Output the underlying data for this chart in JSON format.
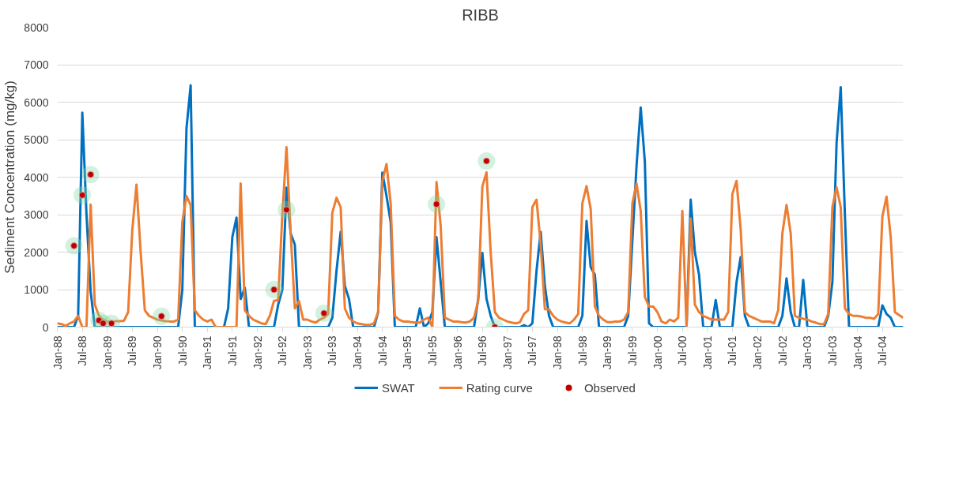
{
  "chart_data": {
    "type": "line",
    "title": "RIBB",
    "ylabel": "Sediment Concentration (mg/kg)",
    "x": [
      "1988-01",
      "1988-02",
      "1988-03",
      "1988-04",
      "1988-05",
      "1988-06",
      "1988-07",
      "1988-08",
      "1988-09",
      "1988-10",
      "1988-11",
      "1988-12",
      "1989-01",
      "1989-02",
      "1989-03",
      "1989-04",
      "1989-05",
      "1989-06",
      "1989-07",
      "1989-08",
      "1989-09",
      "1989-10",
      "1989-11",
      "1989-12",
      "1990-01",
      "1990-02",
      "1990-03",
      "1990-04",
      "1990-05",
      "1990-06",
      "1990-07",
      "1990-08",
      "1990-09",
      "1990-10",
      "1990-11",
      "1990-12",
      "1991-01",
      "1991-02",
      "1991-03",
      "1991-04",
      "1991-05",
      "1991-06",
      "1991-07",
      "1991-08",
      "1991-09",
      "1991-10",
      "1991-11",
      "1991-12",
      "1992-01",
      "1992-02",
      "1992-03",
      "1992-04",
      "1992-05",
      "1992-06",
      "1992-07",
      "1992-08",
      "1992-09",
      "1992-10",
      "1992-11",
      "1992-12",
      "1993-01",
      "1993-02",
      "1993-03",
      "1993-04",
      "1993-05",
      "1993-06",
      "1993-07",
      "1993-08",
      "1993-09",
      "1993-10",
      "1993-11",
      "1993-12",
      "1994-01",
      "1994-02",
      "1994-03",
      "1994-04",
      "1994-05",
      "1994-06",
      "1994-07",
      "1994-08",
      "1994-09",
      "1994-10",
      "1994-11",
      "1994-12",
      "1995-01",
      "1995-02",
      "1995-03",
      "1995-04",
      "1995-05",
      "1995-06",
      "1995-07",
      "1995-08",
      "1995-09",
      "1995-10",
      "1995-11",
      "1995-12",
      "1996-01",
      "1996-02",
      "1996-03",
      "1996-04",
      "1996-05",
      "1996-06",
      "1996-07",
      "1996-08",
      "1996-09",
      "1996-10",
      "1996-11",
      "1996-12",
      "1997-01",
      "1997-02",
      "1997-03",
      "1997-04",
      "1997-05",
      "1997-06",
      "1997-07",
      "1997-08",
      "1997-09",
      "1997-10",
      "1997-11",
      "1997-12",
      "1998-01",
      "1998-02",
      "1998-03",
      "1998-04",
      "1998-05",
      "1998-06",
      "1998-07",
      "1998-08",
      "1998-09",
      "1998-10",
      "1998-11",
      "1998-12",
      "1999-01",
      "1999-02",
      "1999-03",
      "1999-04",
      "1999-05",
      "1999-06",
      "1999-07",
      "1999-08",
      "1999-09",
      "1999-10",
      "1999-11",
      "1999-12",
      "2000-01",
      "2000-02",
      "2000-03",
      "2000-04",
      "2000-05",
      "2000-06",
      "2000-07",
      "2000-08",
      "2000-09",
      "2000-10",
      "2000-11",
      "2000-12",
      "2001-01",
      "2001-02",
      "2001-03",
      "2001-04",
      "2001-05",
      "2001-06",
      "2001-07",
      "2001-08",
      "2001-09",
      "2001-10",
      "2001-11",
      "2001-12",
      "2002-01",
      "2002-02",
      "2002-03",
      "2002-04",
      "2002-05",
      "2002-06",
      "2002-07",
      "2002-08",
      "2002-09",
      "2002-10",
      "2002-11",
      "2002-12",
      "2003-01",
      "2003-02",
      "2003-03",
      "2003-04",
      "2003-05",
      "2003-06",
      "2003-07",
      "2003-08",
      "2003-09",
      "2003-10",
      "2003-11",
      "2003-12",
      "2004-01",
      "2004-02",
      "2004-03",
      "2004-04",
      "2004-05",
      "2004-06",
      "2004-07",
      "2004-08",
      "2004-09",
      "2004-10",
      "2004-11",
      "2004-12"
    ],
    "series": [
      {
        "name": "SWAT",
        "color": "#0070c0",
        "values": [
          0,
          0,
          0,
          0,
          0,
          300,
          5720,
          3000,
          950,
          0,
          0,
          0,
          0,
          0,
          0,
          0,
          0,
          0,
          0,
          0,
          0,
          0,
          0,
          0,
          0,
          0,
          0,
          0,
          0,
          0,
          1000,
          5300,
          6450,
          0,
          0,
          0,
          0,
          0,
          0,
          0,
          0,
          500,
          2400,
          2920,
          750,
          1050,
          0,
          0,
          0,
          0,
          0,
          0,
          0,
          600,
          1000,
          3720,
          2500,
          2200,
          0,
          0,
          0,
          0,
          0,
          0,
          0,
          0,
          250,
          1500,
          2540,
          1100,
          750,
          0,
          0,
          0,
          0,
          0,
          0,
          400,
          4120,
          3500,
          2800,
          0,
          0,
          0,
          0,
          0,
          0,
          500,
          0,
          100,
          400,
          2400,
          1200,
          0,
          0,
          0,
          0,
          0,
          0,
          0,
          0,
          750,
          1980,
          750,
          300,
          0,
          0,
          0,
          0,
          0,
          0,
          0,
          50,
          0,
          100,
          1500,
          2540,
          1100,
          300,
          0,
          0,
          0,
          0,
          0,
          0,
          0,
          300,
          2830,
          1600,
          1400,
          0,
          0,
          0,
          0,
          0,
          0,
          0,
          300,
          2300,
          4300,
          5860,
          4400,
          100,
          0,
          0,
          0,
          0,
          0,
          0,
          0,
          0,
          0,
          3400,
          2000,
          1400,
          0,
          0,
          0,
          720,
          0,
          0,
          0,
          0,
          1200,
          1870,
          300,
          0,
          0,
          0,
          0,
          0,
          0,
          0,
          0,
          300,
          1300,
          400,
          0,
          0,
          1260,
          0,
          0,
          0,
          0,
          0,
          300,
          1200,
          4900,
          6400,
          3000,
          0,
          0,
          0,
          0,
          0,
          0,
          0,
          0,
          580,
          350,
          250,
          0,
          0,
          0
        ]
      },
      {
        "name": "Rating curve",
        "color": "#ed7d31",
        "values": [
          100,
          80,
          30,
          100,
          150,
          300,
          0,
          0,
          3270,
          600,
          300,
          200,
          150,
          150,
          160,
          160,
          170,
          400,
          2600,
          3800,
          2000,
          450,
          300,
          250,
          200,
          180,
          160,
          150,
          150,
          200,
          2800,
          3500,
          3250,
          450,
          300,
          200,
          150,
          200,
          0,
          0,
          0,
          0,
          0,
          0,
          3830,
          450,
          300,
          200,
          150,
          100,
          80,
          300,
          700,
          720,
          3000,
          4800,
          2500,
          500,
          700,
          200,
          200,
          150,
          120,
          200,
          250,
          350,
          3050,
          3450,
          3200,
          500,
          250,
          150,
          100,
          80,
          60,
          60,
          100,
          400,
          3900,
          4350,
          3300,
          300,
          200,
          150,
          150,
          130,
          120,
          120,
          200,
          250,
          0,
          3870,
          2700,
          250,
          200,
          150,
          150,
          130,
          120,
          150,
          250,
          700,
          3750,
          4130,
          2000,
          400,
          250,
          200,
          150,
          120,
          100,
          130,
          350,
          450,
          3200,
          3400,
          2200,
          480,
          470,
          300,
          200,
          150,
          120,
          100,
          200,
          350,
          3300,
          3760,
          3150,
          550,
          300,
          200,
          130,
          130,
          150,
          150,
          200,
          400,
          3300,
          3830,
          3100,
          800,
          550,
          550,
          400,
          150,
          100,
          200,
          150,
          250,
          3100,
          0,
          2900,
          600,
          400,
          300,
          250,
          200,
          200,
          200,
          200,
          400,
          3550,
          3900,
          2600,
          400,
          300,
          250,
          200,
          150,
          150,
          150,
          100,
          450,
          2500,
          3260,
          2500,
          300,
          250,
          220,
          200,
          150,
          120,
          80,
          80,
          350,
          3200,
          3730,
          3200,
          500,
          350,
          300,
          300,
          280,
          250,
          250,
          220,
          350,
          2950,
          3480,
          2400,
          400,
          320,
          250
        ]
      },
      {
        "name": "Observed",
        "type": "scatter",
        "marker": "circle",
        "color": "#c00000",
        "x": [
          "1988-05",
          "1988-07",
          "1988-09",
          "1988-11",
          "1988-12",
          "1989-02",
          "1990-02",
          "1992-05",
          "1992-08",
          "1993-05",
          "1995-08",
          "1996-08",
          "1996-10"
        ],
        "values": [
          2170,
          3520,
          4070,
          180,
          100,
          100,
          290,
          1000,
          3130,
          370,
          3280,
          4430,
          0
        ]
      }
    ],
    "xlim": [
      "1988-01",
      "2004-12"
    ],
    "xticks": [
      {
        "value": "1988-01",
        "label": "Jan-88"
      },
      {
        "value": "1988-07",
        "label": "Jul-88"
      },
      {
        "value": "1989-01",
        "label": "Jan-89"
      },
      {
        "value": "1989-07",
        "label": "Jul-89"
      },
      {
        "value": "1990-01",
        "label": "Jan-90"
      },
      {
        "value": "1990-07",
        "label": "Jul-90"
      },
      {
        "value": "1991-01",
        "label": "Jan-91"
      },
      {
        "value": "1991-07",
        "label": "Jul-91"
      },
      {
        "value": "1992-01",
        "label": "Jan-92"
      },
      {
        "value": "1992-07",
        "label": "Jul-92"
      },
      {
        "value": "1993-01",
        "label": "Jan-93"
      },
      {
        "value": "1993-07",
        "label": "Jul-93"
      },
      {
        "value": "1994-01",
        "label": "Jan-94"
      },
      {
        "value": "1994-07",
        "label": "Jul-94"
      },
      {
        "value": "1995-01",
        "label": "Jan-95"
      },
      {
        "value": "1995-07",
        "label": "Jul-95"
      },
      {
        "value": "1996-01",
        "label": "Jan-96"
      },
      {
        "value": "1996-07",
        "label": "Jul-96"
      },
      {
        "value": "1997-01",
        "label": "Jan-97"
      },
      {
        "value": "1997-07",
        "label": "Jul-97"
      },
      {
        "value": "1998-01",
        "label": "Jan-98"
      },
      {
        "value": "1998-07",
        "label": "Jul-98"
      },
      {
        "value": "1999-01",
        "label": "Jan-99"
      },
      {
        "value": "1999-07",
        "label": "Jul-99"
      },
      {
        "value": "2000-01",
        "label": "Jan-00"
      },
      {
        "value": "2000-07",
        "label": "Jul-00"
      },
      {
        "value": "2001-01",
        "label": "Jan-01"
      },
      {
        "value": "2001-07",
        "label": "Jul-01"
      },
      {
        "value": "2002-01",
        "label": "Jan-02"
      },
      {
        "value": "2002-07",
        "label": "Jul-02"
      },
      {
        "value": "2003-01",
        "label": "Jan-03"
      },
      {
        "value": "2003-07",
        "label": "Jul-03"
      },
      {
        "value": "2004-01",
        "label": "Jan-04"
      },
      {
        "value": "2004-07",
        "label": "Jul-04"
      }
    ],
    "ylim": [
      0,
      8000
    ],
    "yticks": [
      0,
      1000,
      2000,
      3000,
      4000,
      5000,
      6000,
      7000,
      8000
    ],
    "grid": "y",
    "legend": "bottom",
    "line_style": "solid"
  }
}
